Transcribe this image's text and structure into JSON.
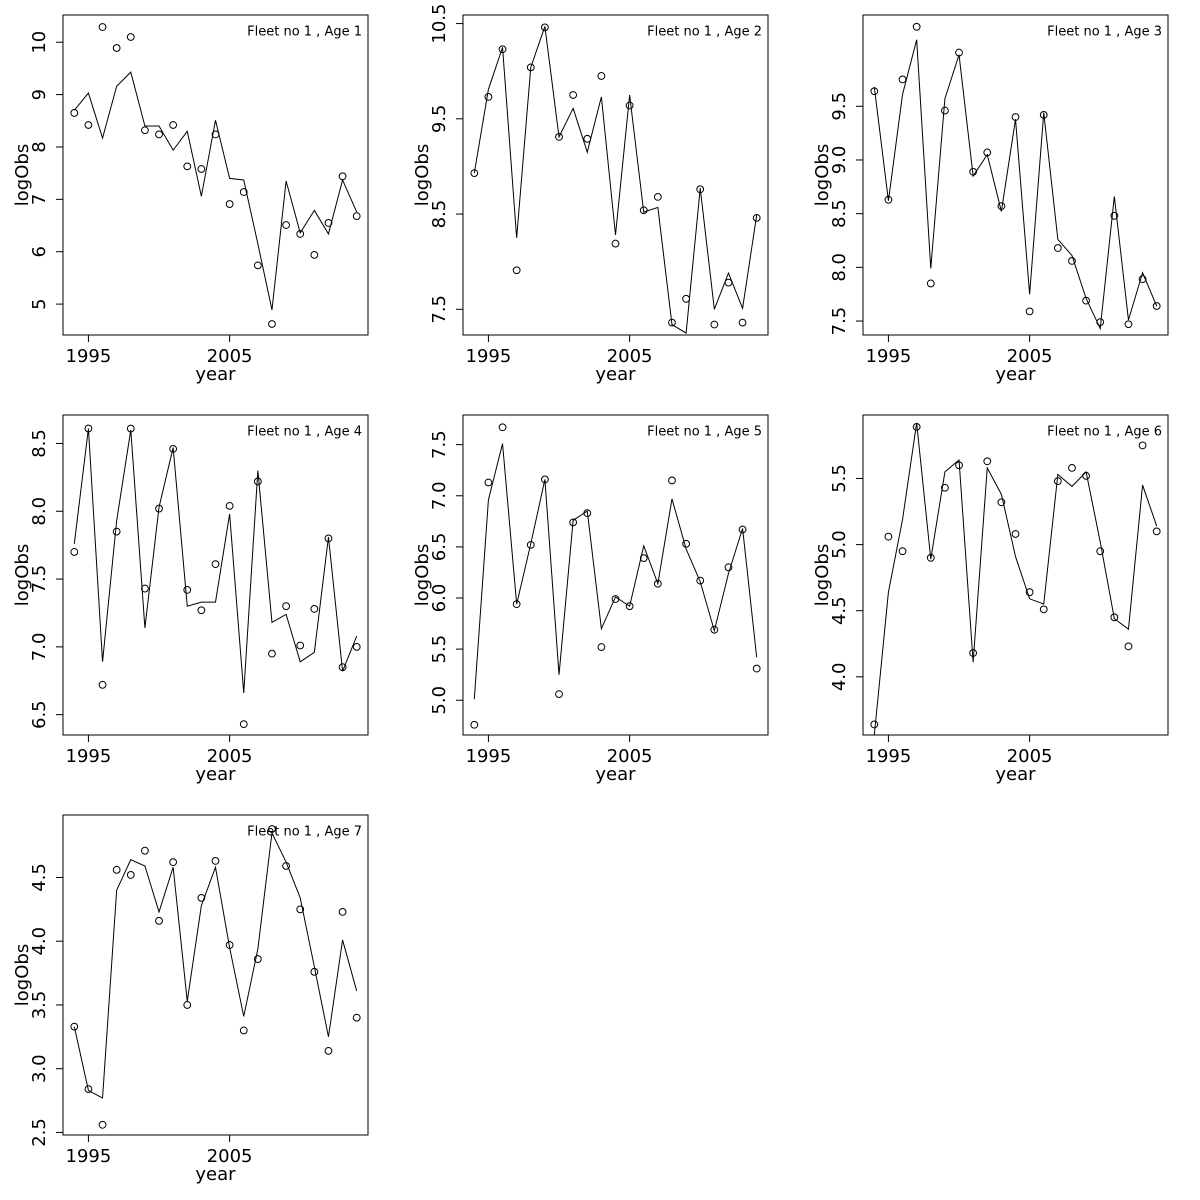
{
  "chart_data": [
    {
      "type": "line",
      "title": "Fleet no 1 , Age 1",
      "xlabel": "year",
      "ylabel": "logObs",
      "x": [
        1994,
        1995,
        1996,
        1997,
        1998,
        1999,
        2000,
        2001,
        2002,
        2003,
        2004,
        2005,
        2006,
        2007,
        2008,
        2009,
        2010,
        2011,
        2012,
        2013,
        2014
      ],
      "xlim": [
        1993.2,
        2014.8
      ],
      "xticks": [
        1995,
        2005
      ],
      "ylim": [
        4.41,
        10.52
      ],
      "yticks": [
        5,
        6,
        7,
        8,
        9,
        10
      ],
      "series": [
        {
          "style": "points",
          "color": "#000000",
          "values": [
            8.65,
            8.42,
            10.29,
            9.89,
            10.1,
            8.32,
            8.24,
            8.42,
            7.63,
            7.58,
            8.24,
            6.91,
            7.14,
            5.74,
            4.62,
            6.51,
            6.34,
            5.94,
            6.55,
            7.44,
            6.68
          ]
        },
        {
          "style": "line",
          "color": "#000000",
          "values": [
            8.7,
            9.03,
            8.17,
            9.16,
            9.43,
            8.4,
            8.4,
            7.94,
            8.3,
            7.06,
            8.51,
            7.4,
            7.37,
            6.15,
            4.89,
            7.35,
            6.36,
            6.79,
            6.34,
            7.37,
            6.76
          ]
        }
      ]
    },
    {
      "type": "line",
      "title": "Fleet no 1 , Age 2",
      "xlabel": "year",
      "ylabel": "logObs",
      "x": [
        1994,
        1995,
        1996,
        1997,
        1998,
        1999,
        2000,
        2001,
        2002,
        2003,
        2004,
        2005,
        2006,
        2007,
        2008,
        2009,
        2010,
        2011,
        2012,
        2013,
        2014
      ],
      "xlim": [
        1993.2,
        2014.8
      ],
      "xticks": [
        1995,
        2005
      ],
      "ylim": [
        7.23,
        10.59
      ],
      "yticks": [
        7.5,
        8.5,
        9.5,
        10.5
      ],
      "series": [
        {
          "style": "points",
          "color": "#000000",
          "values": [
            8.93,
            9.73,
            10.23,
            7.91,
            10.04,
            10.46,
            9.31,
            9.75,
            9.29,
            9.95,
            8.19,
            9.64,
            8.54,
            8.68,
            7.36,
            7.61,
            8.76,
            7.34,
            7.78,
            7.36,
            8.46
          ]
        },
        {
          "style": "line",
          "color": "#000000",
          "values": [
            8.93,
            9.81,
            10.25,
            8.25,
            10.04,
            10.47,
            9.31,
            9.61,
            9.15,
            9.73,
            8.28,
            9.75,
            8.52,
            8.57,
            7.34,
            7.25,
            8.77,
            7.5,
            7.88,
            7.51,
            8.49
          ]
        }
      ]
    },
    {
      "type": "line",
      "title": "Fleet no 1 , Age 3",
      "xlabel": "year",
      "ylabel": "logObs",
      "x": [
        1994,
        1995,
        1996,
        1997,
        1998,
        1999,
        2000,
        2001,
        2002,
        2003,
        2004,
        2005,
        2006,
        2007,
        2008,
        2009,
        2010,
        2011,
        2012,
        2013,
        2014
      ],
      "xlim": [
        1993.2,
        2014.8
      ],
      "xticks": [
        1995,
        2005
      ],
      "ylim": [
        7.37,
        10.35
      ],
      "yticks": [
        7.5,
        {
          "value": 8,
          "label": "8.0"
        },
        8.5,
        {
          "value": 9,
          "label": "9.0"
        },
        9.5
      ],
      "series": [
        {
          "style": "points",
          "color": "#000000",
          "values": [
            9.64,
            8.63,
            9.75,
            10.24,
            7.85,
            9.46,
            10.0,
            8.89,
            9.07,
            8.57,
            9.4,
            7.59,
            9.42,
            8.18,
            8.06,
            7.69,
            7.49,
            8.48,
            7.47,
            7.89,
            7.64
          ]
        },
        {
          "style": "line",
          "color": "#000000",
          "values": [
            9.68,
            8.62,
            9.61,
            10.12,
            7.99,
            9.57,
            9.98,
            8.85,
            9.05,
            8.52,
            9.38,
            7.75,
            9.44,
            8.26,
            8.11,
            7.71,
            7.43,
            8.66,
            7.51,
            7.95,
            7.64
          ]
        }
      ]
    },
    {
      "type": "line",
      "title": "Fleet no 1 , Age 4",
      "xlabel": "year",
      "ylabel": "logObs",
      "x": [
        1994,
        1995,
        1996,
        1997,
        1998,
        1999,
        2000,
        2001,
        2002,
        2003,
        2004,
        2005,
        2006,
        2007,
        2008,
        2009,
        2010,
        2011,
        2012,
        2013,
        2014
      ],
      "xlim": [
        1993.2,
        2014.8
      ],
      "xticks": [
        1995,
        2005
      ],
      "ylim": [
        6.35,
        8.71
      ],
      "yticks": [
        6.5,
        {
          "value": 7,
          "label": "7.0"
        },
        7.5,
        {
          "value": 8,
          "label": "8.0"
        },
        8.5
      ],
      "series": [
        {
          "style": "points",
          "color": "#000000",
          "values": [
            7.7,
            8.61,
            6.72,
            7.85,
            8.61,
            7.43,
            8.02,
            8.46,
            7.42,
            7.27,
            7.61,
            8.04,
            6.43,
            8.22,
            6.95,
            7.3,
            7.01,
            7.28,
            7.8,
            6.85,
            7.0
          ]
        },
        {
          "style": "line",
          "color": "#000000",
          "values": [
            7.76,
            8.61,
            6.89,
            7.93,
            8.6,
            7.14,
            8.03,
            8.47,
            7.3,
            7.33,
            7.33,
            7.98,
            6.66,
            8.3,
            7.18,
            7.24,
            6.89,
            6.96,
            7.81,
            6.82,
            7.08
          ]
        }
      ]
    },
    {
      "type": "line",
      "title": "Fleet no 1 , Age 5",
      "xlabel": "year",
      "ylabel": "logObs",
      "x": [
        1994,
        1995,
        1996,
        1997,
        1998,
        1999,
        2000,
        2001,
        2002,
        2003,
        2004,
        2005,
        2006,
        2007,
        2008,
        2009,
        2010,
        2011,
        2012,
        2013,
        2014
      ],
      "xlim": [
        1993.2,
        2014.8
      ],
      "xticks": [
        1995,
        2005
      ],
      "ylim": [
        4.66,
        7.79
      ],
      "yticks": [
        {
          "value": 5,
          "label": "5.0"
        },
        5.5,
        {
          "value": 6,
          "label": "6.0"
        },
        6.5,
        {
          "value": 7,
          "label": "7.0"
        },
        7.5
      ],
      "series": [
        {
          "style": "points",
          "color": "#000000",
          "values": [
            4.76,
            7.13,
            7.67,
            5.94,
            6.52,
            7.16,
            5.06,
            6.74,
            6.83,
            5.52,
            5.99,
            5.92,
            6.39,
            6.14,
            7.15,
            6.53,
            6.17,
            5.69,
            6.3,
            6.67,
            5.31
          ]
        },
        {
          "style": "line",
          "color": "#000000",
          "values": [
            5.01,
            6.96,
            7.51,
            5.94,
            6.53,
            7.16,
            5.25,
            6.76,
            6.85,
            5.7,
            6.01,
            5.92,
            6.51,
            6.14,
            6.97,
            6.48,
            6.16,
            5.68,
            6.24,
            6.68,
            5.42
          ]
        }
      ]
    },
    {
      "type": "line",
      "title": "Fleet no 1 , Age 6",
      "xlabel": "year",
      "ylabel": "logObs",
      "x": [
        1994,
        1995,
        1996,
        1997,
        1998,
        1999,
        2000,
        2001,
        2002,
        2003,
        2004,
        2005,
        2006,
        2007,
        2008,
        2009,
        2010,
        2011,
        2012,
        2013,
        2014
      ],
      "xlim": [
        1993.2,
        2014.8
      ],
      "xticks": [
        1995,
        2005
      ],
      "ylim": [
        3.56,
        5.98
      ],
      "yticks": [
        {
          "value": 4,
          "label": "4.0"
        },
        4.5,
        {
          "value": 5,
          "label": "5.0"
        },
        5.5
      ],
      "series": [
        {
          "style": "points",
          "color": "#000000",
          "values": [
            3.64,
            5.06,
            4.95,
            5.89,
            4.9,
            5.43,
            5.6,
            4.18,
            5.63,
            5.32,
            5.08,
            4.64,
            4.51,
            5.48,
            5.58,
            5.52,
            4.95,
            4.45,
            4.23,
            5.75,
            5.1
          ]
        },
        {
          "style": "line",
          "color": "#000000",
          "values": [
            3.56,
            4.64,
            5.19,
            5.92,
            4.89,
            5.55,
            5.64,
            4.11,
            5.58,
            5.38,
            4.91,
            4.59,
            4.55,
            5.53,
            5.44,
            5.55,
            5.02,
            4.44,
            4.36,
            5.45,
            5.14
          ]
        }
      ]
    },
    {
      "type": "line",
      "title": "Fleet no 1 , Age 7",
      "xlabel": "year",
      "ylabel": "logObs",
      "x": [
        1994,
        1995,
        1996,
        1997,
        1998,
        1999,
        2000,
        2001,
        2002,
        2003,
        2004,
        2005,
        2006,
        2007,
        2008,
        2009,
        2010,
        2011,
        2012,
        2013,
        2014
      ],
      "xlim": [
        1993.2,
        2014.8
      ],
      "xticks": [
        1995,
        2005
      ],
      "ylim": [
        2.48,
        4.99
      ],
      "yticks": [
        2.5,
        {
          "value": 3,
          "label": "3.0"
        },
        3.5,
        {
          "value": 4,
          "label": "4.0"
        },
        4.5
      ],
      "series": [
        {
          "style": "points",
          "color": "#000000",
          "values": [
            3.33,
            2.84,
            2.56,
            4.56,
            4.52,
            4.71,
            4.16,
            4.62,
            3.5,
            4.34,
            4.63,
            3.97,
            3.3,
            3.86,
            4.88,
            4.59,
            4.25,
            3.76,
            3.14,
            4.23,
            3.4
          ]
        },
        {
          "style": "line",
          "color": "#000000",
          "values": [
            3.33,
            2.83,
            2.77,
            4.4,
            4.64,
            4.59,
            4.23,
            4.58,
            3.53,
            4.28,
            4.58,
            3.95,
            3.41,
            3.94,
            4.85,
            4.62,
            4.34,
            3.8,
            3.25,
            4.01,
            3.61
          ]
        }
      ]
    }
  ]
}
